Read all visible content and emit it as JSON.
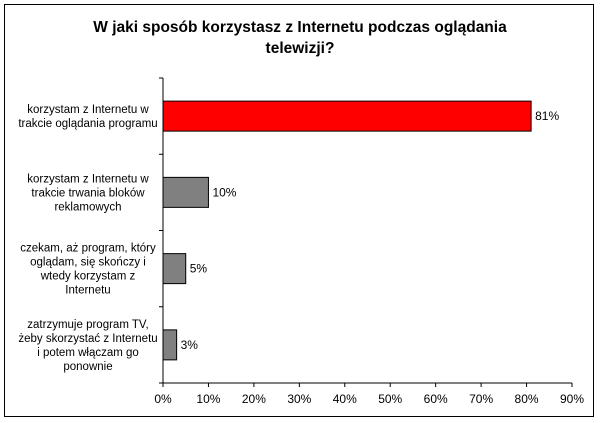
{
  "chart_data": {
    "type": "bar",
    "orientation": "horizontal",
    "title_lines": [
      "W jaki sposób korzystasz z Internetu podczas oglądania",
      "telewizji?"
    ],
    "categories": [
      {
        "label_lines": [
          "korzystam z Internetu w",
          "trakcie oglądania programu"
        ],
        "value": 81,
        "value_label": "81%",
        "color": "#ff0000"
      },
      {
        "label_lines": [
          "korzystam z Internetu w",
          "trakcie trwania bloków",
          "reklamowych"
        ],
        "value": 10,
        "value_label": "10%",
        "color": "#808080"
      },
      {
        "label_lines": [
          "czekam, aż program, który",
          "oglądam, się skończy i",
          "wtedy korzystam z",
          "Internetu"
        ],
        "value": 5,
        "value_label": "5%",
        "color": "#808080"
      },
      {
        "label_lines": [
          "zatrzymuje program TV,",
          "żeby skorzystać z Internetu",
          "i potem włączam go",
          "ponownie"
        ],
        "value": 3,
        "value_label": "3%",
        "color": "#808080"
      }
    ],
    "xlim": [
      0,
      90
    ],
    "x_ticks": [
      {
        "value": 0,
        "label": "0%"
      },
      {
        "value": 10,
        "label": "10%"
      },
      {
        "value": 20,
        "label": "20%"
      },
      {
        "value": 30,
        "label": "30%"
      },
      {
        "value": 40,
        "label": "40%"
      },
      {
        "value": 50,
        "label": "50%"
      },
      {
        "value": 60,
        "label": "60%"
      },
      {
        "value": 70,
        "label": "70%"
      },
      {
        "value": 80,
        "label": "80%"
      },
      {
        "value": 90,
        "label": "90%"
      }
    ],
    "grid": false,
    "legend": "none"
  }
}
